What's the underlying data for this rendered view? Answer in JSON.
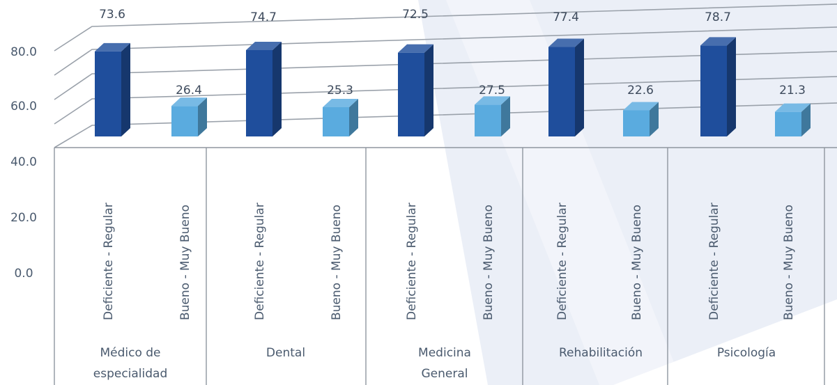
{
  "chart_data": {
    "type": "bar",
    "style": "3d-clustered-column",
    "categories": [
      "Médico de especialidad",
      "Dental",
      "Medicina General",
      "Rehabilitación",
      "Psicología"
    ],
    "subcategories": [
      "Deficiente - Regular",
      "Bueno - Muy Bueno"
    ],
    "series": [
      {
        "values": [
          73.6,
          74.7,
          72.5,
          77.4,
          78.7
        ],
        "color": "#1f4e9c"
      },
      {
        "values": [
          26.4,
          25.3,
          27.5,
          22.6,
          21.3
        ],
        "color": "#5aabdf"
      }
    ],
    "yticks": [
      "80.0",
      "60.0",
      "40.0",
      "20.0",
      "0.0"
    ],
    "ylim": [
      0,
      80
    ],
    "grid": true,
    "legend": "none"
  },
  "colors": {
    "background": "#ffffff",
    "watermark": "#e3e8f4",
    "series_dark": "#1f4e9c",
    "series_light": "#5aabdf"
  }
}
